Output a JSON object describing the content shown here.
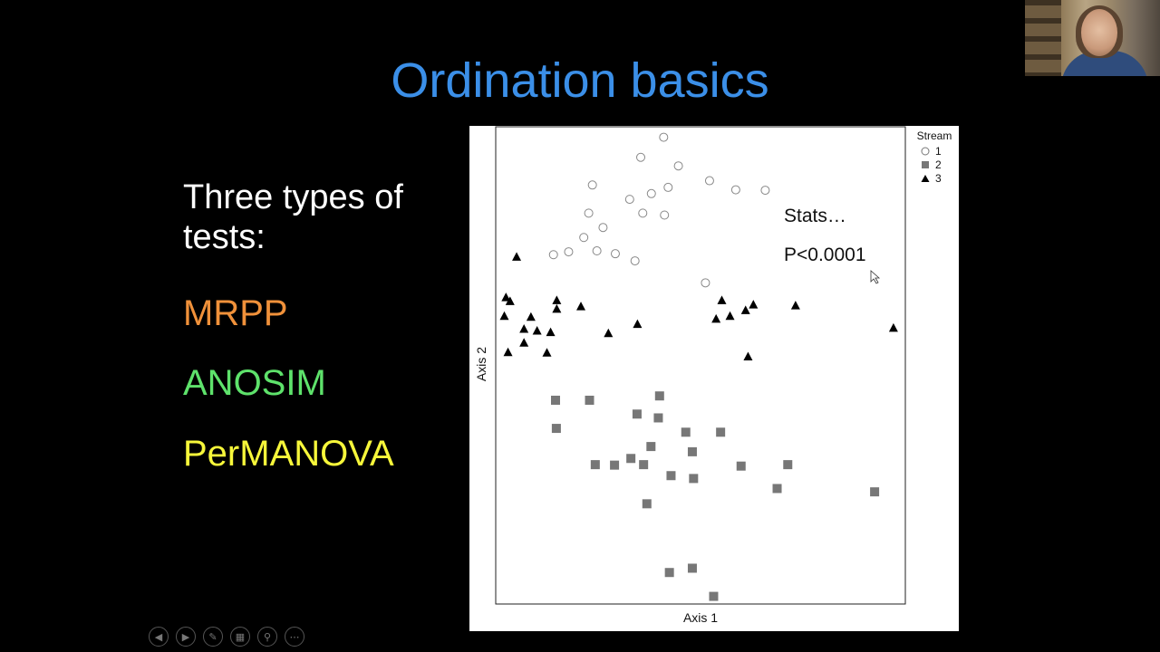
{
  "slide": {
    "title": "Ordination basics",
    "intro": "Three types of tests:",
    "tests": [
      {
        "label": "MRPP",
        "color": "#f0913a"
      },
      {
        "label": "ANOSIM",
        "color": "#5ee26b"
      },
      {
        "label": "PerMANOVA",
        "color": "#f7f73a"
      }
    ]
  },
  "annotation": {
    "stats": "Stats…",
    "pvalue": "P<0.0001"
  },
  "legend": {
    "title": "Stream",
    "items": [
      {
        "label": "1",
        "marker": "open-circle"
      },
      {
        "label": "2",
        "marker": "grey-square"
      },
      {
        "label": "3",
        "marker": "black-triangle"
      }
    ]
  },
  "chart_data": {
    "type": "scatter",
    "xlabel": "Axis 1",
    "ylabel": "Axis 2",
    "xlim": [
      0,
      100
    ],
    "ylim": [
      0,
      100
    ],
    "grid": false,
    "legend_position": "right",
    "series": [
      {
        "name": "1",
        "marker": "open-circle",
        "color": "#888888",
        "x": [
          41.0,
          35.4,
          44.6,
          23.6,
          52.2,
          58.6,
          65.8,
          32.7,
          38.0,
          42.1,
          22.7,
          35.9,
          41.2,
          26.2,
          21.5,
          17.8,
          14.1,
          24.7,
          29.2,
          34.0,
          51.2
        ],
        "y": [
          97.8,
          93.6,
          91.8,
          87.8,
          88.7,
          86.8,
          86.7,
          84.8,
          86.0,
          87.3,
          81.9,
          81.9,
          81.5,
          78.9,
          76.8,
          73.8,
          73.2,
          74.0,
          73.4,
          71.9,
          67.3
        ]
      },
      {
        "name": "2",
        "marker": "grey-square",
        "color": "#777777",
        "x": [
          40.0,
          14.6,
          22.9,
          34.5,
          39.7,
          14.8,
          46.4,
          54.9,
          37.9,
          48.0,
          24.3,
          29.0,
          33.0,
          36.1,
          59.9,
          71.3,
          42.8,
          48.3,
          68.7,
          92.5,
          36.9,
          42.4,
          48.0,
          53.2
        ],
        "y": [
          43.6,
          42.7,
          42.7,
          39.8,
          39.0,
          36.8,
          36.0,
          36.0,
          33.0,
          31.9,
          29.2,
          29.1,
          30.5,
          29.2,
          28.9,
          29.2,
          26.9,
          26.3,
          24.2,
          23.5,
          21.0,
          6.6,
          7.5,
          1.6
        ]
      },
      {
        "name": "3",
        "marker": "black-triangle",
        "color": "#000000",
        "x": [
          5.1,
          2.5,
          3.5,
          14.9,
          14.9,
          20.8,
          8.6,
          2.1,
          6.9,
          10.1,
          13.4,
          27.5,
          34.6,
          55.2,
          62.9,
          73.2,
          53.8,
          57.2,
          61.0,
          97.1,
          6.9,
          3.0,
          12.5,
          61.6
        ],
        "y": [
          72.7,
          64.2,
          63.4,
          63.6,
          61.8,
          62.3,
          60.1,
          60.3,
          57.6,
          57.2,
          56.9,
          56.7,
          58.6,
          63.6,
          62.7,
          62.5,
          59.7,
          60.3,
          61.5,
          57.8,
          54.7,
          52.7,
          52.6,
          51.8
        ]
      }
    ]
  },
  "playback_controls": [
    {
      "name": "previous-slide-icon"
    },
    {
      "name": "next-slide-icon"
    },
    {
      "name": "pen-icon"
    },
    {
      "name": "slides-grid-icon"
    },
    {
      "name": "zoom-icon"
    },
    {
      "name": "more-options-icon"
    }
  ]
}
